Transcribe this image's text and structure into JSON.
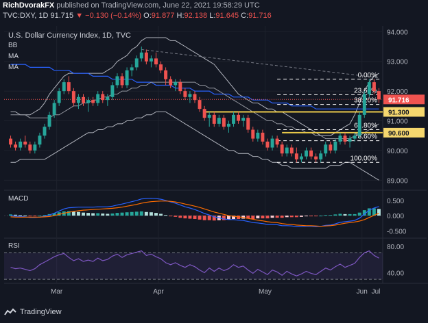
{
  "header": {
    "author": "RichDvorakFX",
    "published": "published on TradingView.com, June 22, 2021 19:58:29 UTC",
    "symbol": "TVC:DXY, 1D",
    "last": "91.715",
    "change": "▼ −0.130 (−0.14%)",
    "o_label": "O:",
    "o": "91.877",
    "h_label": "H:",
    "h": "92.138",
    "l_label": "L:",
    "l": "91.645",
    "c_label": "C:",
    "c": "91.716"
  },
  "chart_title": "U.S. Dollar Currency Index, 1D, TVC",
  "indicator_labels": [
    "BB",
    "MA",
    "MA"
  ],
  "footer": {
    "brand": "TradingView"
  },
  "colors": {
    "background": "#131722",
    "up": "#26a69a",
    "down": "#ef5350",
    "price_badge": "#ef5350",
    "level_badge": "#f5d76e",
    "ma_fast": "#9598a1",
    "ma_slow": "#2962ff",
    "bollinger": "#b2b5be",
    "macd_line": "#2962ff",
    "signal_line": "#ff6d00",
    "rsi_line": "#7e57c2"
  },
  "chart_data": [
    {
      "type": "candlestick",
      "title": "U.S. Dollar Currency Index, 1D, TVC",
      "x_ticks": [
        "Mar",
        "Apr",
        "May",
        "Jun",
        "Jul"
      ],
      "y_ticks": [
        "94.000",
        "93.000",
        "92.000",
        "91.000",
        "90.000",
        "89.000"
      ],
      "ylim": [
        88.8,
        94.1
      ],
      "last_price": "91.716",
      "ohlc": [
        [
          90.4,
          90.5,
          90.1,
          90.2
        ],
        [
          90.2,
          90.3,
          90.0,
          90.1
        ],
        [
          90.1,
          90.4,
          90.0,
          90.3
        ],
        [
          90.3,
          90.5,
          90.1,
          90.2
        ],
        [
          90.2,
          90.3,
          89.9,
          90.0
        ],
        [
          90.0,
          90.3,
          89.9,
          90.2
        ],
        [
          90.2,
          90.6,
          90.1,
          90.5
        ],
        [
          90.5,
          90.9,
          90.4,
          90.8
        ],
        [
          90.8,
          91.3,
          90.7,
          91.2
        ],
        [
          91.2,
          91.7,
          91.1,
          91.6
        ],
        [
          91.6,
          92.1,
          91.5,
          92.0
        ],
        [
          92.0,
          92.4,
          91.9,
          92.3
        ],
        [
          92.3,
          92.5,
          91.9,
          92.0
        ],
        [
          92.0,
          92.1,
          91.5,
          91.6
        ],
        [
          91.6,
          91.9,
          91.4,
          91.8
        ],
        [
          91.8,
          91.9,
          91.5,
          91.6
        ],
        [
          91.6,
          91.8,
          91.3,
          91.7
        ],
        [
          91.7,
          91.8,
          91.5,
          91.6
        ],
        [
          91.6,
          92.0,
          91.5,
          91.9
        ],
        [
          91.9,
          92.0,
          91.6,
          91.7
        ],
        [
          91.7,
          91.9,
          91.5,
          91.8
        ],
        [
          91.8,
          92.3,
          91.7,
          92.2
        ],
        [
          92.2,
          92.6,
          92.1,
          92.5
        ],
        [
          92.5,
          92.6,
          92.1,
          92.2
        ],
        [
          92.2,
          92.8,
          92.1,
          92.7
        ],
        [
          92.7,
          92.9,
          92.5,
          92.8
        ],
        [
          92.8,
          93.2,
          92.7,
          93.1
        ],
        [
          93.1,
          93.5,
          93.0,
          93.3
        ],
        [
          93.3,
          93.4,
          92.9,
          93.0
        ],
        [
          93.0,
          93.2,
          92.8,
          93.1
        ],
        [
          93.1,
          93.3,
          92.8,
          92.9
        ],
        [
          92.9,
          93.0,
          92.6,
          92.7
        ],
        [
          92.7,
          92.8,
          92.2,
          92.4
        ],
        [
          92.4,
          92.5,
          92.1,
          92.2
        ],
        [
          92.2,
          92.4,
          92.0,
          92.3
        ],
        [
          92.3,
          92.4,
          91.9,
          92.0
        ],
        [
          92.0,
          92.1,
          91.7,
          91.8
        ],
        [
          91.8,
          92.0,
          91.6,
          91.9
        ],
        [
          91.9,
          92.0,
          91.6,
          91.7
        ],
        [
          91.7,
          91.8,
          91.3,
          91.4
        ],
        [
          91.4,
          91.5,
          91.0,
          91.1
        ],
        [
          91.1,
          91.3,
          90.8,
          91.2
        ],
        [
          91.2,
          91.3,
          90.8,
          90.9
        ],
        [
          90.9,
          91.2,
          90.8,
          91.1
        ],
        [
          91.1,
          91.2,
          90.7,
          90.8
        ],
        [
          90.8,
          91.0,
          90.6,
          90.9
        ],
        [
          90.9,
          91.3,
          90.8,
          91.2
        ],
        [
          91.2,
          91.3,
          90.9,
          91.0
        ],
        [
          91.0,
          91.2,
          90.8,
          91.1
        ],
        [
          91.1,
          91.2,
          90.6,
          90.7
        ],
        [
          90.7,
          90.8,
          90.3,
          90.4
        ],
        [
          90.4,
          90.7,
          90.3,
          90.6
        ],
        [
          90.6,
          90.7,
          90.2,
          90.3
        ],
        [
          90.3,
          90.4,
          90.0,
          90.1
        ],
        [
          90.1,
          90.5,
          90.0,
          90.4
        ],
        [
          90.4,
          90.5,
          90.1,
          90.2
        ],
        [
          90.2,
          90.3,
          89.8,
          89.9
        ],
        [
          89.9,
          90.2,
          89.8,
          90.1
        ],
        [
          90.1,
          90.2,
          89.8,
          89.9
        ],
        [
          89.9,
          90.1,
          89.6,
          89.7
        ],
        [
          89.7,
          89.9,
          89.6,
          89.8
        ],
        [
          89.8,
          90.1,
          89.7,
          90.0
        ],
        [
          90.0,
          90.1,
          89.7,
          89.8
        ],
        [
          89.8,
          89.9,
          89.6,
          89.7
        ],
        [
          89.7,
          90.0,
          89.6,
          89.9
        ],
        [
          89.9,
          90.3,
          89.8,
          90.2
        ],
        [
          90.2,
          90.3,
          89.9,
          90.0
        ],
        [
          90.0,
          90.4,
          89.9,
          90.3
        ],
        [
          90.3,
          90.6,
          90.2,
          90.5
        ],
        [
          90.5,
          90.6,
          90.2,
          90.3
        ],
        [
          90.3,
          90.5,
          90.1,
          90.4
        ],
        [
          90.4,
          90.6,
          90.3,
          90.5
        ],
        [
          90.5,
          91.3,
          90.4,
          91.2
        ],
        [
          91.2,
          92.0,
          91.1,
          91.9
        ],
        [
          91.9,
          92.4,
          91.8,
          92.3
        ],
        [
          92.3,
          92.4,
          91.9,
          92.0
        ],
        [
          92.0,
          92.1,
          91.6,
          91.72
        ]
      ],
      "overlays": {
        "ma_fast": [
          91.2,
          91.2,
          91.2,
          91.2,
          91.1,
          91.1,
          91.1,
          91.1,
          91.1,
          91.2,
          91.2,
          91.3,
          91.4,
          91.5,
          91.5,
          91.6,
          91.6,
          91.7,
          91.7,
          91.8,
          91.8,
          91.9,
          91.9,
          92.0,
          92.0,
          92.1,
          92.1,
          92.2,
          92.2,
          92.3,
          92.3,
          92.3,
          92.3,
          92.3,
          92.3,
          92.3,
          92.3,
          92.3,
          92.3,
          92.2,
          92.2,
          92.1,
          92.1,
          92.0,
          91.9,
          91.8,
          91.7,
          91.6,
          91.5,
          91.4,
          91.3,
          91.2,
          91.1,
          91.0,
          91.0,
          90.9,
          90.9,
          90.8,
          90.8,
          90.7,
          90.7,
          90.6,
          90.6,
          90.5,
          90.5,
          90.4,
          90.4,
          90.4,
          90.4,
          90.4,
          90.4,
          90.5,
          90.5,
          90.6,
          90.7,
          90.8,
          90.9
        ],
        "ma_slow": [
          92.9,
          92.9,
          92.9,
          92.9,
          92.8,
          92.8,
          92.8,
          92.8,
          92.8,
          92.7,
          92.7,
          92.7,
          92.7,
          92.6,
          92.6,
          92.6,
          92.6,
          92.5,
          92.5,
          92.5,
          92.5,
          92.4,
          92.4,
          92.4,
          92.4,
          92.4,
          92.3,
          92.3,
          92.3,
          92.3,
          92.2,
          92.2,
          92.2,
          92.2,
          92.1,
          92.1,
          92.1,
          92.1,
          92.0,
          92.0,
          92.0,
          92.0,
          91.9,
          91.9,
          91.9,
          91.9,
          91.8,
          91.8,
          91.8,
          91.8,
          91.7,
          91.7,
          91.7,
          91.7,
          91.6,
          91.6,
          91.6,
          91.6,
          91.5,
          91.5,
          91.5,
          91.5,
          91.5,
          91.4,
          91.4,
          91.4,
          91.4,
          91.4,
          91.4,
          91.4,
          91.4,
          91.4,
          91.4,
          91.4,
          91.4,
          91.4,
          91.4
        ],
        "bb_upper": [
          91.3,
          91.3,
          91.2,
          91.2,
          91.2,
          91.3,
          91.4,
          91.6,
          91.9,
          92.1,
          92.3,
          92.5,
          92.6,
          92.6,
          92.6,
          92.6,
          92.6,
          92.6,
          92.6,
          92.6,
          92.7,
          92.8,
          93.0,
          93.1,
          93.2,
          93.4,
          93.5,
          93.7,
          93.8,
          93.8,
          93.8,
          93.8,
          93.8,
          93.7,
          93.7,
          93.6,
          93.5,
          93.4,
          93.3,
          93.2,
          93.1,
          93.0,
          92.9,
          92.7,
          92.5,
          92.3,
          92.1,
          91.9,
          91.8,
          91.7,
          91.6,
          91.6,
          91.5,
          91.4,
          91.4,
          91.3,
          91.3,
          91.2,
          91.1,
          91.0,
          90.9,
          90.8,
          90.7,
          90.6,
          90.5,
          90.5,
          90.5,
          90.6,
          90.7,
          90.8,
          90.9,
          91.2,
          91.6,
          92.0,
          92.3,
          92.5,
          92.6
        ],
        "bb_lower": [
          89.6,
          89.6,
          89.7,
          89.7,
          89.7,
          89.7,
          89.7,
          89.7,
          89.8,
          89.9,
          90.0,
          90.1,
          90.2,
          90.3,
          90.4,
          90.5,
          90.6,
          90.6,
          90.7,
          90.7,
          90.8,
          90.8,
          90.9,
          90.9,
          91.0,
          91.0,
          91.1,
          91.1,
          91.2,
          91.2,
          91.3,
          91.3,
          91.3,
          91.2,
          91.1,
          91.0,
          90.9,
          90.8,
          90.7,
          90.6,
          90.5,
          90.4,
          90.3,
          90.2,
          90.1,
          90.0,
          90.0,
          89.9,
          89.9,
          89.9,
          89.8,
          89.8,
          89.7,
          89.7,
          89.6,
          89.6,
          89.5,
          89.5,
          89.4,
          89.4,
          89.4,
          89.4,
          89.4,
          89.4,
          89.4,
          89.4,
          89.5,
          89.5,
          89.5,
          89.6,
          89.6,
          89.5,
          89.4,
          89.3,
          89.2,
          89.1,
          89.0
        ]
      },
      "fibonacci": [
        {
          "label": "0.00%",
          "value": 92.4
        },
        {
          "label": "23.60%",
          "value": 91.88
        },
        {
          "label": "38.20%",
          "value": 91.55
        },
        {
          "label": "61.80%",
          "value": 90.7
        },
        {
          "label": "78.60%",
          "value": 90.33
        },
        {
          "label": "100.00%",
          "value": 89.6
        }
      ],
      "levels": [
        {
          "label": "91.300",
          "value": 91.3
        },
        {
          "label": "90.600",
          "value": 90.6
        }
      ]
    },
    {
      "type": "bar",
      "title": "MACD",
      "y_ticks": [
        "0.500",
        "0.000",
        "-0.500"
      ],
      "ylim": [
        -0.65,
        0.7
      ],
      "histogram": [
        0.04,
        0.03,
        0.02,
        0.01,
        -0.01,
        -0.01,
        0.0,
        0.02,
        0.05,
        0.08,
        0.11,
        0.14,
        0.15,
        0.13,
        0.12,
        0.1,
        0.09,
        0.08,
        0.08,
        0.07,
        0.06,
        0.07,
        0.09,
        0.1,
        0.11,
        0.12,
        0.13,
        0.14,
        0.12,
        0.11,
        0.09,
        0.06,
        0.02,
        -0.02,
        -0.04,
        -0.07,
        -0.09,
        -0.1,
        -0.11,
        -0.13,
        -0.15,
        -0.15,
        -0.16,
        -0.15,
        -0.15,
        -0.13,
        -0.11,
        -0.11,
        -0.1,
        -0.1,
        -0.11,
        -0.09,
        -0.09,
        -0.09,
        -0.07,
        -0.07,
        -0.07,
        -0.05,
        -0.05,
        -0.05,
        -0.04,
        -0.02,
        -0.02,
        -0.02,
        0.0,
        0.02,
        0.02,
        0.04,
        0.06,
        0.05,
        0.05,
        0.05,
        0.1,
        0.18,
        0.24,
        0.24,
        0.22
      ],
      "macd_line": [
        0.0,
        -0.02,
        -0.03,
        -0.04,
        -0.06,
        -0.06,
        -0.05,
        -0.02,
        0.02,
        0.08,
        0.15,
        0.22,
        0.26,
        0.27,
        0.28,
        0.28,
        0.28,
        0.28,
        0.29,
        0.29,
        0.29,
        0.31,
        0.35,
        0.38,
        0.42,
        0.46,
        0.5,
        0.55,
        0.56,
        0.57,
        0.56,
        0.54,
        0.5,
        0.45,
        0.41,
        0.35,
        0.29,
        0.25,
        0.2,
        0.14,
        0.07,
        0.02,
        -0.04,
        -0.07,
        -0.11,
        -0.13,
        -0.13,
        -0.15,
        -0.16,
        -0.19,
        -0.23,
        -0.24,
        -0.26,
        -0.29,
        -0.29,
        -0.3,
        -0.33,
        -0.33,
        -0.34,
        -0.36,
        -0.36,
        -0.35,
        -0.35,
        -0.36,
        -0.35,
        -0.32,
        -0.31,
        -0.27,
        -0.22,
        -0.2,
        -0.18,
        -0.16,
        -0.08,
        0.05,
        0.18,
        0.25,
        0.3
      ],
      "signal_line": [
        -0.04,
        -0.05,
        -0.05,
        -0.05,
        -0.05,
        -0.05,
        -0.05,
        -0.04,
        -0.03,
        0.0,
        0.04,
        0.08,
        0.11,
        0.14,
        0.16,
        0.18,
        0.19,
        0.2,
        0.21,
        0.22,
        0.23,
        0.24,
        0.26,
        0.28,
        0.31,
        0.34,
        0.37,
        0.41,
        0.44,
        0.46,
        0.47,
        0.48,
        0.48,
        0.47,
        0.45,
        0.42,
        0.38,
        0.35,
        0.31,
        0.27,
        0.22,
        0.17,
        0.12,
        0.08,
        0.04,
        0.0,
        -0.02,
        -0.04,
        -0.06,
        -0.09,
        -0.12,
        -0.15,
        -0.17,
        -0.2,
        -0.22,
        -0.23,
        -0.26,
        -0.28,
        -0.29,
        -0.31,
        -0.32,
        -0.33,
        -0.33,
        -0.34,
        -0.35,
        -0.34,
        -0.33,
        -0.31,
        -0.28,
        -0.25,
        -0.23,
        -0.21,
        -0.18,
        -0.13,
        -0.06,
        0.01,
        0.08
      ]
    },
    {
      "type": "line",
      "title": "RSI",
      "y_ticks": [
        "80.00",
        "40.00"
      ],
      "ylim": [
        28,
        86
      ],
      "bands": [
        70,
        30
      ],
      "values": [
        48,
        46,
        47,
        45,
        43,
        46,
        52,
        56,
        60,
        64,
        67,
        69,
        63,
        58,
        61,
        57,
        59,
        57,
        62,
        58,
        60,
        65,
        68,
        63,
        67,
        69,
        71,
        73,
        66,
        68,
        64,
        61,
        55,
        52,
        55,
        51,
        48,
        52,
        49,
        44,
        40,
        47,
        42,
        47,
        43,
        46,
        52,
        48,
        50,
        44,
        39,
        45,
        41,
        37,
        44,
        41,
        36,
        42,
        38,
        35,
        38,
        42,
        39,
        37,
        42,
        47,
        44,
        49,
        53,
        48,
        51,
        54,
        63,
        70,
        73,
        66,
        62
      ]
    }
  ]
}
